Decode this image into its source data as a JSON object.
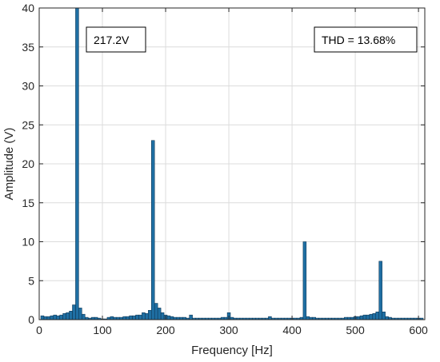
{
  "chart_data": {
    "type": "bar",
    "title": "",
    "xlabel": "Frequency [Hz]",
    "ylabel": "Amplitude (V)",
    "xlim": [
      0,
      610
    ],
    "ylim": [
      0,
      40
    ],
    "xticks": [
      0,
      100,
      200,
      300,
      400,
      500,
      600
    ],
    "yticks": [
      0,
      5,
      10,
      15,
      20,
      25,
      30,
      35,
      40
    ],
    "grid": true,
    "bar_color": "#1f6fa3",
    "bar_edge_color": "#0a2e4a",
    "bin_width_hz": 5,
    "annotations": [
      {
        "text": "217.2V"
      },
      {
        "text": "THD = 13.68%"
      }
    ],
    "x": [
      5,
      10,
      15,
      20,
      25,
      30,
      35,
      40,
      45,
      50,
      55,
      60,
      65,
      70,
      75,
      80,
      85,
      90,
      95,
      100,
      105,
      110,
      115,
      120,
      125,
      130,
      135,
      140,
      145,
      150,
      155,
      160,
      165,
      170,
      175,
      180,
      185,
      190,
      195,
      200,
      205,
      210,
      215,
      220,
      225,
      230,
      235,
      240,
      245,
      250,
      255,
      260,
      265,
      270,
      275,
      280,
      285,
      290,
      295,
      300,
      305,
      310,
      315,
      320,
      325,
      330,
      335,
      340,
      345,
      350,
      355,
      360,
      365,
      370,
      375,
      380,
      385,
      390,
      395,
      400,
      405,
      410,
      415,
      420,
      425,
      430,
      435,
      440,
      445,
      450,
      455,
      460,
      465,
      470,
      475,
      480,
      485,
      490,
      495,
      500,
      505,
      510,
      515,
      520,
      525,
      530,
      535,
      540,
      545,
      550,
      555,
      560,
      565,
      570,
      575,
      580,
      585,
      590,
      595,
      600,
      605
    ],
    "values": [
      0.5,
      0.4,
      0.4,
      0.5,
      0.6,
      0.5,
      0.6,
      0.8,
      0.9,
      1.1,
      1.9,
      217.2,
      1.5,
      0.7,
      0.3,
      0.2,
      0.3,
      0.3,
      0.2,
      0.1,
      0.1,
      0.3,
      0.4,
      0.3,
      0.3,
      0.3,
      0.4,
      0.4,
      0.5,
      0.5,
      0.6,
      0.6,
      0.9,
      0.8,
      1.2,
      23.0,
      2.1,
      1.5,
      0.9,
      0.6,
      0.5,
      0.4,
      0.3,
      0.3,
      0.3,
      0.3,
      0.2,
      0.6,
      0.2,
      0.2,
      0.2,
      0.2,
      0.2,
      0.2,
      0.2,
      0.2,
      0.2,
      0.3,
      0.3,
      0.9,
      0.3,
      0.2,
      0.2,
      0.2,
      0.2,
      0.2,
      0.2,
      0.2,
      0.2,
      0.2,
      0.2,
      0.2,
      0.4,
      0.2,
      0.2,
      0.2,
      0.2,
      0.2,
      0.2,
      0.2,
      0.2,
      0.2,
      0.3,
      10.0,
      0.4,
      0.3,
      0.3,
      0.2,
      0.2,
      0.2,
      0.2,
      0.2,
      0.2,
      0.2,
      0.2,
      0.2,
      0.3,
      0.3,
      0.3,
      0.4,
      0.4,
      0.5,
      0.6,
      0.6,
      0.7,
      0.8,
      1.0,
      7.5,
      1.0,
      0.4,
      0.3,
      0.2,
      0.2,
      0.2,
      0.2,
      0.2,
      0.2,
      0.2,
      0.2,
      0.2,
      0.2
    ]
  }
}
